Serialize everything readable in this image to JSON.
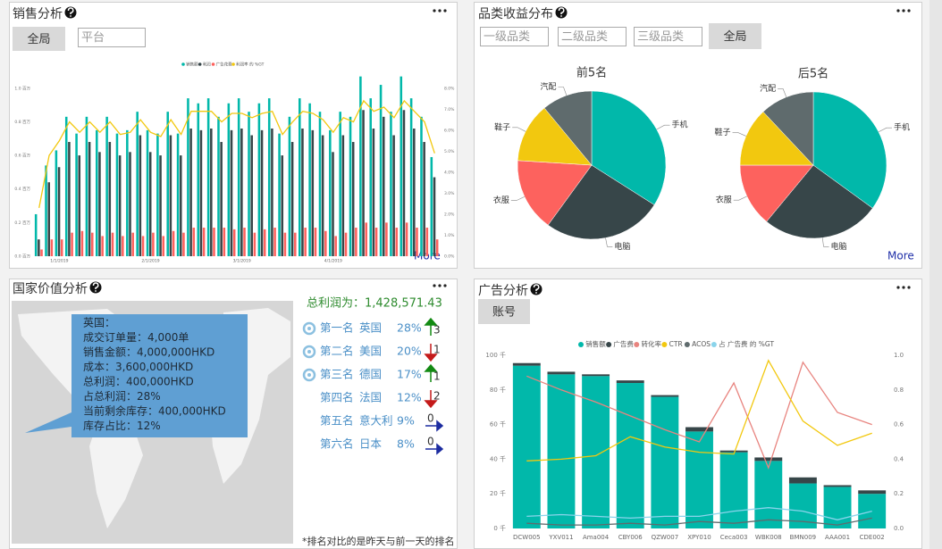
{
  "panels": [
    {
      "title": "销售分析",
      "buttons": [
        "全局"
      ],
      "inputs": [
        "平台"
      ],
      "more": "More",
      "chart_data": {
        "type": "bar",
        "stacked": false,
        "grid": false,
        "categories": [
          null,
          null,
          "1/1/2019",
          null,
          null,
          null,
          null,
          null,
          null,
          null,
          null,
          "2/1/2019",
          null,
          null,
          null,
          null,
          null,
          null,
          null,
          null,
          "3/1/2019",
          null,
          null,
          null,
          null,
          null,
          null,
          null,
          null,
          "4/1/2019",
          null,
          null,
          null,
          null,
          null,
          null,
          null,
          null,
          null,
          null
        ],
        "series": [
          {
            "name": "销售额",
            "color": "#01b8aa",
            "values": [
              0.25,
              0.54,
              0.63,
              0.83,
              0.73,
              0.83,
              0.75,
              0.83,
              0.73,
              0.75,
              0.86,
              0.75,
              0.73,
              0.86,
              0.73,
              0.94,
              0.91,
              0.94,
              0.83,
              0.91,
              0.94,
              0.86,
              0.91,
              0.94,
              0.73,
              0.83,
              0.94,
              0.91,
              0.86,
              0.75,
              0.86,
              0.83,
              1.07,
              0.94,
              1.02,
              0.86,
              1.07,
              0.94,
              0.83,
              0.59
            ]
          },
          {
            "name": "利润",
            "color": "#374649",
            "values": [
              0.1,
              0.44,
              0.53,
              0.68,
              0.6,
              0.68,
              0.62,
              0.68,
              0.6,
              0.62,
              0.72,
              0.62,
              0.6,
              0.72,
              0.6,
              0.76,
              0.75,
              0.76,
              0.68,
              0.75,
              0.76,
              0.72,
              0.75,
              0.76,
              0.6,
              0.68,
              0.76,
              0.75,
              0.72,
              0.62,
              0.72,
              0.68,
              0.87,
              0.76,
              0.83,
              0.72,
              0.87,
              0.76,
              0.68,
              0.47
            ]
          },
          {
            "name": "广告花费",
            "color": "#fd625e",
            "values": [
              0.04,
              0.1,
              0.1,
              0.14,
              0.15,
              0.14,
              0.12,
              0.14,
              0.12,
              0.14,
              0.12,
              0.14,
              0.12,
              0.15,
              0.14,
              0.17,
              0.17,
              0.17,
              0.17,
              0.16,
              0.17,
              0.14,
              0.16,
              0.17,
              0.14,
              0.14,
              0.17,
              0.17,
              0.15,
              0.12,
              0.14,
              0.17,
              0.2,
              0.17,
              0.2,
              0.17,
              0.2,
              0.17,
              0.17,
              0.1
            ]
          },
          {
            "name": "利润率 的 %GT",
            "color": "#f2c80f",
            "type": "line",
            "axis": "y2",
            "values": [
              2.3,
              4.8,
              5.5,
              6.4,
              5.9,
              6.4,
              5.9,
              6.4,
              5.8,
              5.9,
              6.5,
              5.9,
              5.7,
              6.5,
              5.8,
              6.9,
              6.9,
              6.9,
              6.4,
              6.8,
              6.8,
              6.6,
              6.8,
              6.9,
              5.8,
              6.4,
              6.9,
              6.8,
              6.5,
              5.9,
              6.6,
              6.4,
              7.4,
              6.9,
              7.1,
              6.6,
              7.4,
              6.9,
              6.4,
              4.9
            ]
          }
        ],
        "ylim": [
          0,
          1.1
        ],
        "yticks": [
          {
            "value": 0,
            "label": "0.0 百万"
          },
          {
            "value": 0.2,
            "label": "0.2 百万"
          },
          {
            "value": 0.4,
            "label": "0.4 百万"
          },
          {
            "value": 0.6,
            "label": "0.6 百万"
          },
          {
            "value": 0.8,
            "label": "0.8 百万"
          },
          {
            "value": 1,
            "label": "1.0 百万"
          }
        ],
        "y2lim": [
          0,
          8.8
        ],
        "y2ticks": [
          {
            "value": 0,
            "label": "0.0%"
          },
          {
            "value": 1,
            "label": "1.0%"
          },
          {
            "value": 2,
            "label": "2.0%"
          },
          {
            "value": 3,
            "label": "3.0%"
          },
          {
            "value": 4,
            "label": "4.0%"
          },
          {
            "value": 5,
            "label": "5.0%"
          },
          {
            "value": 6,
            "label": "6.0%"
          },
          {
            "value": 7,
            "label": "7.0%"
          },
          {
            "value": 8,
            "label": "8.0%"
          }
        ]
      }
    },
    {
      "title": "品类收益分布",
      "inputs": [
        "一级品类",
        "二级品类",
        "三级品类"
      ],
      "buttons": [
        "全局"
      ],
      "more": "More",
      "chart_data": [
        {
          "type": "pie",
          "title": "前5名",
          "categories": [
            "手机",
            "电脑",
            "衣服",
            "鞋子",
            "汽配"
          ],
          "colors": [
            "#01b8aa",
            "#374649",
            "#fd625e",
            "#f2c80f",
            "#5f6b6d"
          ],
          "values": [
            34,
            26,
            16,
            13,
            11
          ]
        },
        {
          "type": "pie",
          "title": "后5名",
          "categories": [
            "手机",
            "电脑",
            "衣服",
            "鞋子",
            "汽配"
          ],
          "colors": [
            "#01b8aa",
            "#374649",
            "#fd625e",
            "#f2c80f",
            "#5f6b6d"
          ],
          "values": [
            35,
            26,
            14,
            13,
            12
          ]
        }
      ]
    },
    {
      "title": "国家价值分析",
      "tooltip": [
        "英国：",
        "成交订单量：4,000单",
        "销售金额：4,000,000HKD",
        "成本：3,600,000HKD",
        "总利润：400,000HKD",
        "占总利润：28%",
        "当前剩余库存：400,000HKD",
        "库存占比：12%"
      ],
      "total": "总利润为：1,428,571.43",
      "ranking": [
        {
          "rank": "第一名",
          "country": "英国",
          "share": "28%",
          "change": "3",
          "trend": "up",
          "medal": true
        },
        {
          "rank": "第二名",
          "country": "美国",
          "share": "20%",
          "change": "1",
          "trend": "down",
          "medal": true
        },
        {
          "rank": "第三名",
          "country": "德国",
          "share": "17%",
          "change": "1",
          "trend": "up",
          "medal": true
        },
        {
          "rank": "第四名",
          "country": "法国",
          "share": "12%",
          "change": "2",
          "trend": "down",
          "medal": false
        },
        {
          "rank": "第五名",
          "country": "意大利",
          "share": "9%",
          "change": "0",
          "trend": "flat",
          "medal": false
        },
        {
          "rank": "第六名",
          "country": "日本",
          "share": "8%",
          "change": "0",
          "trend": "flat",
          "medal": false
        }
      ],
      "note": "*排名对比的是昨天与前一天的排名"
    },
    {
      "title": "广告分析",
      "buttons": [
        "账号"
      ],
      "chart_data": {
        "type": "bar",
        "stacked": true,
        "grid": false,
        "categories": [
          "DCW005",
          "YXV011",
          "Ama004",
          "CBY006",
          "QZW007",
          "XPY010",
          "Ceca003",
          "WBK008",
          "BMN009",
          "AAA001",
          "CDE002"
        ],
        "series": [
          {
            "name": "销售额",
            "color": "#01b8aa",
            "values": [
              94,
              89,
              88,
              84,
              76,
              56,
              44,
              39,
              26,
              24,
              20
            ]
          },
          {
            "name": "广告费",
            "color": "#374649",
            "values": [
              1.5,
              1.5,
              1,
              1.5,
              1,
              2.5,
              1,
              2,
              3.5,
              1,
              2
            ]
          },
          {
            "name": "转化率",
            "color": "#e8847f",
            "type": "line",
            "axis": "y2",
            "values": [
              0.88,
              0.8,
              0.73,
              0.65,
              0.57,
              0.5,
              0.84,
              0.35,
              0.96,
              0.67,
              0.6
            ]
          },
          {
            "name": "CTR",
            "color": "#f2c80f",
            "type": "line",
            "axis": "y2",
            "values": [
              0.39,
              0.4,
              0.42,
              0.53,
              0.47,
              0.44,
              0.43,
              0.97,
              0.62,
              0.48,
              0.55
            ]
          },
          {
            "name": "ACOS",
            "color": "#5f6b6d",
            "type": "line",
            "axis": "y2",
            "values": [
              0.03,
              0.02,
              0.02,
              0.03,
              0.02,
              0.04,
              0.03,
              0.05,
              0.04,
              0.02,
              0.06
            ]
          },
          {
            "name": "占 广告费 的 %GT",
            "color": "#8ad4eb",
            "type": "line",
            "axis": "y2",
            "values": [
              0.07,
              0.08,
              0.07,
              0.06,
              0.07,
              0.07,
              0.1,
              0.12,
              0.1,
              0.05,
              0.1
            ]
          }
        ],
        "ylim": [
          0,
          100
        ],
        "yticks": [
          {
            "value": 0,
            "label": "0 千"
          },
          {
            "value": 20,
            "label": "20 千"
          },
          {
            "value": 40,
            "label": "40 千"
          },
          {
            "value": 60,
            "label": "60 千"
          },
          {
            "value": 80,
            "label": "80 千"
          },
          {
            "value": 100,
            "label": "100 千"
          }
        ],
        "y2lim": [
          0,
          1
        ],
        "y2ticks": [
          {
            "value": 0,
            "label": "0.0"
          },
          0.2,
          0.4,
          0.6,
          0.8,
          {
            "value": 1,
            "label": "1.0"
          }
        ]
      }
    }
  ]
}
